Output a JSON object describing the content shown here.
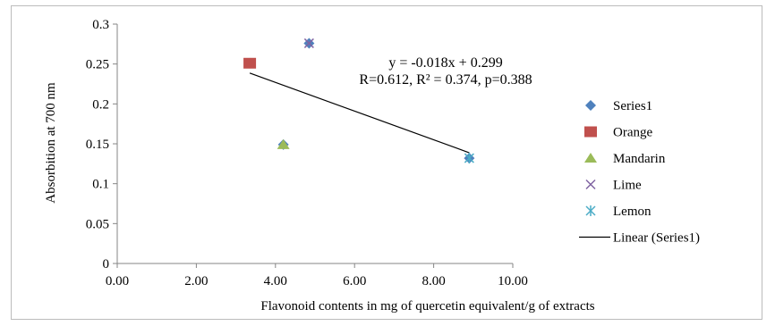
{
  "chart_data": {
    "type": "scatter",
    "xlabel": "Flavonoid contents in  mg of quercetin equivalent/g of extracts",
    "ylabel": "Absorbition at 700 nm",
    "xlim": [
      0,
      10
    ],
    "ylim": [
      0,
      0.3
    ],
    "x_ticks": [
      "0.00",
      "2.00",
      "4.00",
      "6.00",
      "8.00",
      "10.00"
    ],
    "y_ticks": [
      "0",
      "0.05",
      "0.1",
      "0.15",
      "0.2",
      "0.25",
      "0.3"
    ],
    "grid": false,
    "legend_position": "right",
    "series": [
      {
        "name": "Series1",
        "marker": "diamond",
        "color": "#4f81bd",
        "points": [
          {
            "x": 3.35,
            "y": 0.251
          },
          {
            "x": 4.2,
            "y": 0.149
          },
          {
            "x": 4.85,
            "y": 0.276
          },
          {
            "x": 8.9,
            "y": 0.132
          }
        ]
      },
      {
        "name": "Orange",
        "marker": "square",
        "color": "#c0504d",
        "points": [
          {
            "x": 3.35,
            "y": 0.251
          }
        ]
      },
      {
        "name": "Mandarin",
        "marker": "triangle",
        "color": "#9bbb59",
        "points": [
          {
            "x": 4.2,
            "y": 0.149
          }
        ]
      },
      {
        "name": "Lime",
        "marker": "x",
        "color": "#8064a2",
        "points": [
          {
            "x": 4.85,
            "y": 0.276
          }
        ]
      },
      {
        "name": "Lemon",
        "marker": "star",
        "color": "#4bacc6",
        "points": [
          {
            "x": 8.9,
            "y": 0.132
          }
        ]
      }
    ],
    "trendline": {
      "name": "Linear (Series1)",
      "color": "#000000",
      "x_range": [
        3.35,
        8.9
      ],
      "slope": -0.018,
      "intercept": 0.299
    },
    "annotations": [
      "y = -0.018x + 0.299",
      "R=0.612, R² = 0.374, p=0.388"
    ]
  }
}
